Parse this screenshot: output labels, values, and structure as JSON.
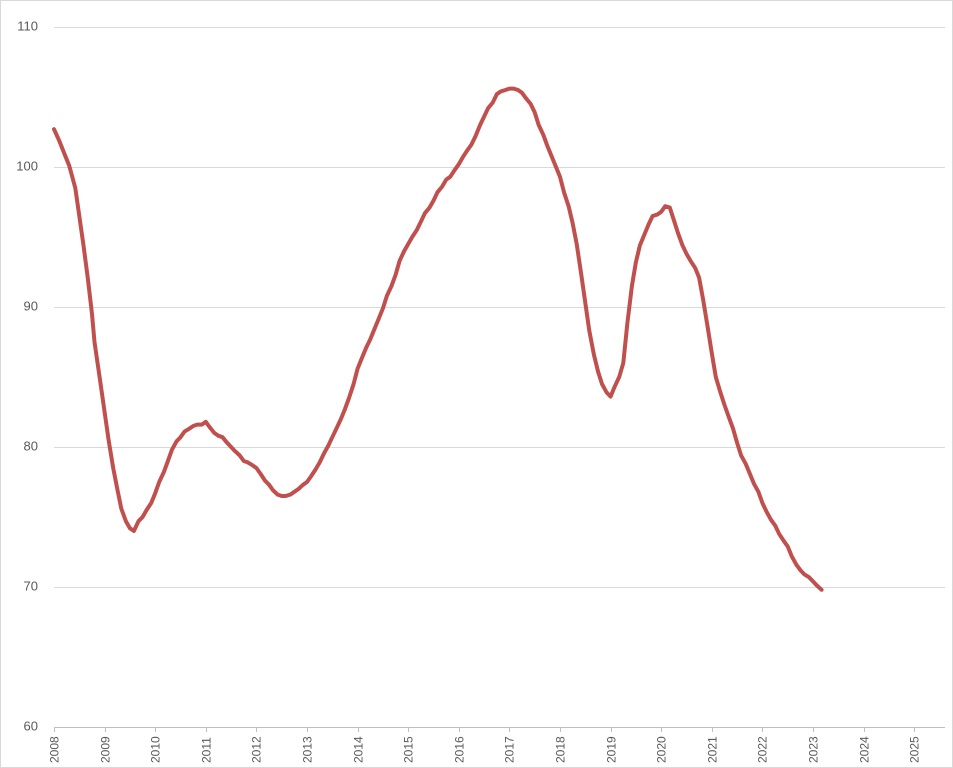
{
  "chart_data": {
    "type": "line",
    "title": "",
    "xlabel": "",
    "ylabel": "",
    "ylim": [
      60,
      110
    ],
    "yticks": [
      60,
      70,
      80,
      90,
      100,
      110
    ],
    "xlim": [
      2008,
      2025.5
    ],
    "xticks": [
      2008,
      2009,
      2010,
      2011,
      2012,
      2013,
      2014,
      2015,
      2016,
      2017,
      2018,
      2019,
      2020,
      2021,
      2022,
      2023,
      2024,
      2025
    ],
    "grid": true,
    "legend": "none",
    "series": [
      {
        "color": "#c0504d",
        "points": [
          [
            2008.0,
            102.7
          ],
          [
            2008.1,
            101.9
          ],
          [
            2008.2,
            101.0
          ],
          [
            2008.3,
            100.1
          ],
          [
            2008.42,
            98.5
          ],
          [
            2008.5,
            96.5
          ],
          [
            2008.58,
            94.5
          ],
          [
            2008.67,
            92.0
          ],
          [
            2008.75,
            89.5
          ],
          [
            2008.8,
            87.5
          ],
          [
            2008.92,
            84.5
          ],
          [
            2009.0,
            82.5
          ],
          [
            2009.08,
            80.5
          ],
          [
            2009.17,
            78.5
          ],
          [
            2009.25,
            77.0
          ],
          [
            2009.33,
            75.6
          ],
          [
            2009.42,
            74.7
          ],
          [
            2009.5,
            74.2
          ],
          [
            2009.58,
            74.0
          ],
          [
            2009.67,
            74.7
          ],
          [
            2009.75,
            75.0
          ],
          [
            2009.83,
            75.5
          ],
          [
            2009.92,
            76.0
          ],
          [
            2010.0,
            76.7
          ],
          [
            2010.08,
            77.5
          ],
          [
            2010.17,
            78.2
          ],
          [
            2010.25,
            79.0
          ],
          [
            2010.33,
            79.8
          ],
          [
            2010.42,
            80.4
          ],
          [
            2010.5,
            80.7
          ],
          [
            2010.58,
            81.1
          ],
          [
            2010.67,
            81.3
          ],
          [
            2010.75,
            81.5
          ],
          [
            2010.83,
            81.6
          ],
          [
            2010.92,
            81.6
          ],
          [
            2011.0,
            81.8
          ],
          [
            2011.08,
            81.4
          ],
          [
            2011.17,
            81.0
          ],
          [
            2011.25,
            80.8
          ],
          [
            2011.33,
            80.7
          ],
          [
            2011.42,
            80.3
          ],
          [
            2011.5,
            80.0
          ],
          [
            2011.58,
            79.7
          ],
          [
            2011.67,
            79.4
          ],
          [
            2011.75,
            79.0
          ],
          [
            2011.83,
            78.9
          ],
          [
            2011.92,
            78.7
          ],
          [
            2012.0,
            78.5
          ],
          [
            2012.08,
            78.1
          ],
          [
            2012.17,
            77.6
          ],
          [
            2012.25,
            77.3
          ],
          [
            2012.33,
            76.9
          ],
          [
            2012.42,
            76.6
          ],
          [
            2012.5,
            76.5
          ],
          [
            2012.58,
            76.5
          ],
          [
            2012.67,
            76.6
          ],
          [
            2012.75,
            76.8
          ],
          [
            2012.83,
            77.0
          ],
          [
            2012.92,
            77.3
          ],
          [
            2013.0,
            77.5
          ],
          [
            2013.08,
            77.9
          ],
          [
            2013.17,
            78.4
          ],
          [
            2013.25,
            78.9
          ],
          [
            2013.33,
            79.5
          ],
          [
            2013.42,
            80.1
          ],
          [
            2013.5,
            80.7
          ],
          [
            2013.58,
            81.3
          ],
          [
            2013.67,
            82.0
          ],
          [
            2013.75,
            82.7
          ],
          [
            2013.83,
            83.5
          ],
          [
            2013.92,
            84.5
          ],
          [
            2014.0,
            85.6
          ],
          [
            2014.08,
            86.3
          ],
          [
            2014.17,
            87.1
          ],
          [
            2014.25,
            87.7
          ],
          [
            2014.33,
            88.4
          ],
          [
            2014.42,
            89.2
          ],
          [
            2014.5,
            89.9
          ],
          [
            2014.58,
            90.8
          ],
          [
            2014.67,
            91.5
          ],
          [
            2014.75,
            92.3
          ],
          [
            2014.83,
            93.3
          ],
          [
            2014.92,
            94.0
          ],
          [
            2015.0,
            94.5
          ],
          [
            2015.08,
            95.0
          ],
          [
            2015.17,
            95.5
          ],
          [
            2015.25,
            96.1
          ],
          [
            2015.33,
            96.7
          ],
          [
            2015.42,
            97.1
          ],
          [
            2015.5,
            97.6
          ],
          [
            2015.58,
            98.2
          ],
          [
            2015.67,
            98.6
          ],
          [
            2015.75,
            99.1
          ],
          [
            2015.83,
            99.3
          ],
          [
            2015.92,
            99.8
          ],
          [
            2016.0,
            100.2
          ],
          [
            2016.08,
            100.7
          ],
          [
            2016.17,
            101.2
          ],
          [
            2016.25,
            101.6
          ],
          [
            2016.33,
            102.2
          ],
          [
            2016.42,
            103.0
          ],
          [
            2016.5,
            103.6
          ],
          [
            2016.58,
            104.2
          ],
          [
            2016.67,
            104.6
          ],
          [
            2016.75,
            105.2
          ],
          [
            2016.83,
            105.4
          ],
          [
            2016.92,
            105.5
          ],
          [
            2017.0,
            105.6
          ],
          [
            2017.08,
            105.6
          ],
          [
            2017.17,
            105.5
          ],
          [
            2017.25,
            105.3
          ],
          [
            2017.33,
            104.9
          ],
          [
            2017.42,
            104.5
          ],
          [
            2017.5,
            103.9
          ],
          [
            2017.58,
            103.0
          ],
          [
            2017.67,
            102.3
          ],
          [
            2017.75,
            101.5
          ],
          [
            2017.83,
            100.8
          ],
          [
            2017.92,
            100.0
          ],
          [
            2018.0,
            99.3
          ],
          [
            2018.08,
            98.2
          ],
          [
            2018.17,
            97.2
          ],
          [
            2018.25,
            96.0
          ],
          [
            2018.33,
            94.5
          ],
          [
            2018.42,
            92.3
          ],
          [
            2018.5,
            90.3
          ],
          [
            2018.58,
            88.3
          ],
          [
            2018.67,
            86.6
          ],
          [
            2018.75,
            85.4
          ],
          [
            2018.83,
            84.5
          ],
          [
            2018.92,
            83.9
          ],
          [
            2019.0,
            83.6
          ],
          [
            2019.08,
            84.3
          ],
          [
            2019.17,
            85.0
          ],
          [
            2019.25,
            86.0
          ],
          [
            2019.33,
            88.8
          ],
          [
            2019.42,
            91.5
          ],
          [
            2019.5,
            93.2
          ],
          [
            2019.58,
            94.4
          ],
          [
            2019.67,
            95.2
          ],
          [
            2019.75,
            95.9
          ],
          [
            2019.83,
            96.5
          ],
          [
            2019.92,
            96.6
          ],
          [
            2020.0,
            96.8
          ],
          [
            2020.08,
            97.2
          ],
          [
            2020.17,
            97.1
          ],
          [
            2020.25,
            96.2
          ],
          [
            2020.33,
            95.3
          ],
          [
            2020.42,
            94.4
          ],
          [
            2020.5,
            93.8
          ],
          [
            2020.58,
            93.3
          ],
          [
            2020.67,
            92.8
          ],
          [
            2020.75,
            92.1
          ],
          [
            2020.83,
            90.5
          ],
          [
            2020.92,
            88.5
          ],
          [
            2021.0,
            86.7
          ],
          [
            2021.08,
            85.0
          ],
          [
            2021.17,
            83.9
          ],
          [
            2021.25,
            83.0
          ],
          [
            2021.33,
            82.2
          ],
          [
            2021.42,
            81.3
          ],
          [
            2021.5,
            80.3
          ],
          [
            2021.58,
            79.4
          ],
          [
            2021.67,
            78.8
          ],
          [
            2021.75,
            78.1
          ],
          [
            2021.83,
            77.4
          ],
          [
            2021.92,
            76.8
          ],
          [
            2022.0,
            76.0
          ],
          [
            2022.08,
            75.4
          ],
          [
            2022.17,
            74.8
          ],
          [
            2022.25,
            74.4
          ],
          [
            2022.33,
            73.8
          ],
          [
            2022.42,
            73.3
          ],
          [
            2022.5,
            72.9
          ],
          [
            2022.58,
            72.2
          ],
          [
            2022.67,
            71.6
          ],
          [
            2022.75,
            71.2
          ],
          [
            2022.83,
            70.9
          ],
          [
            2022.92,
            70.7
          ],
          [
            2023.0,
            70.4
          ],
          [
            2023.08,
            70.1
          ],
          [
            2023.17,
            69.8
          ]
        ]
      }
    ]
  }
}
